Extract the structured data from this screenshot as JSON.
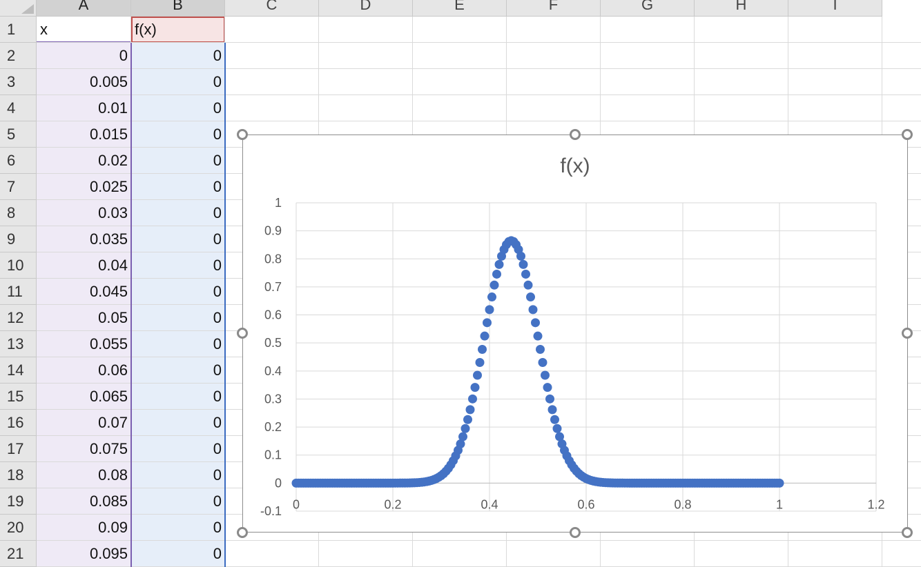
{
  "spreadsheet": {
    "column_headers": [
      "A",
      "B",
      "C",
      "D",
      "E",
      "F",
      "G",
      "H",
      "I"
    ],
    "row_numbers": [
      "1",
      "2",
      "3",
      "4",
      "5",
      "6",
      "7",
      "8",
      "9",
      "10",
      "11",
      "12",
      "13",
      "14",
      "15",
      "16",
      "17",
      "18",
      "19",
      "20",
      "21"
    ],
    "header_row": {
      "A": "x",
      "B": "f(x)"
    },
    "rows": [
      {
        "x": "0",
        "fx": "0"
      },
      {
        "x": "0.005",
        "fx": "0"
      },
      {
        "x": "0.01",
        "fx": "0"
      },
      {
        "x": "0.015",
        "fx": "0"
      },
      {
        "x": "0.02",
        "fx": "0"
      },
      {
        "x": "0.025",
        "fx": "0"
      },
      {
        "x": "0.03",
        "fx": "0"
      },
      {
        "x": "0.035",
        "fx": "0"
      },
      {
        "x": "0.04",
        "fx": "0"
      },
      {
        "x": "0.045",
        "fx": "0"
      },
      {
        "x": "0.05",
        "fx": "0"
      },
      {
        "x": "0.055",
        "fx": "0"
      },
      {
        "x": "0.06",
        "fx": "0"
      },
      {
        "x": "0.065",
        "fx": "0"
      },
      {
        "x": "0.07",
        "fx": "0"
      },
      {
        "x": "0.075",
        "fx": "0"
      },
      {
        "x": "0.08",
        "fx": "0"
      },
      {
        "x": "0.085",
        "fx": "0"
      },
      {
        "x": "0.09",
        "fx": "0"
      },
      {
        "x": "0.095",
        "fx": "0"
      }
    ]
  },
  "chart_data": {
    "type": "scatter",
    "title": "f(x)",
    "xlabel": "",
    "ylabel": "",
    "xlim": [
      0,
      1.2
    ],
    "ylim": [
      -0.1,
      1
    ],
    "x_ticks": [
      "0",
      "0.2",
      "0.4",
      "0.6",
      "0.8",
      "1",
      "1.2"
    ],
    "y_ticks": [
      "-0.1",
      "0",
      "0.1",
      "0.2",
      "0.3",
      "0.4",
      "0.5",
      "0.6",
      "0.7",
      "0.8",
      "0.9",
      "1"
    ],
    "grid": true,
    "marker_color": "#4472c4",
    "series": [
      {
        "x_start": 0,
        "x_end": 1,
        "x_step": 0.005,
        "peak_x": 0.445,
        "peak_y": 0.865,
        "spread_sd": 0.055,
        "points": [
          [
            0.0,
            0
          ],
          [
            0.25,
            0.0
          ],
          [
            0.28,
            0.01
          ],
          [
            0.3,
            0.03
          ],
          [
            0.32,
            0.08
          ],
          [
            0.34,
            0.16
          ],
          [
            0.36,
            0.32
          ],
          [
            0.38,
            0.48
          ],
          [
            0.4,
            0.66
          ],
          [
            0.42,
            0.8
          ],
          [
            0.445,
            0.865
          ],
          [
            0.46,
            0.83
          ],
          [
            0.48,
            0.73
          ],
          [
            0.5,
            0.55
          ],
          [
            0.52,
            0.38
          ],
          [
            0.54,
            0.23
          ],
          [
            0.56,
            0.11
          ],
          [
            0.58,
            0.04
          ],
          [
            0.6,
            0.01
          ],
          [
            0.62,
            0.0
          ],
          [
            1.0,
            0
          ]
        ]
      }
    ]
  }
}
